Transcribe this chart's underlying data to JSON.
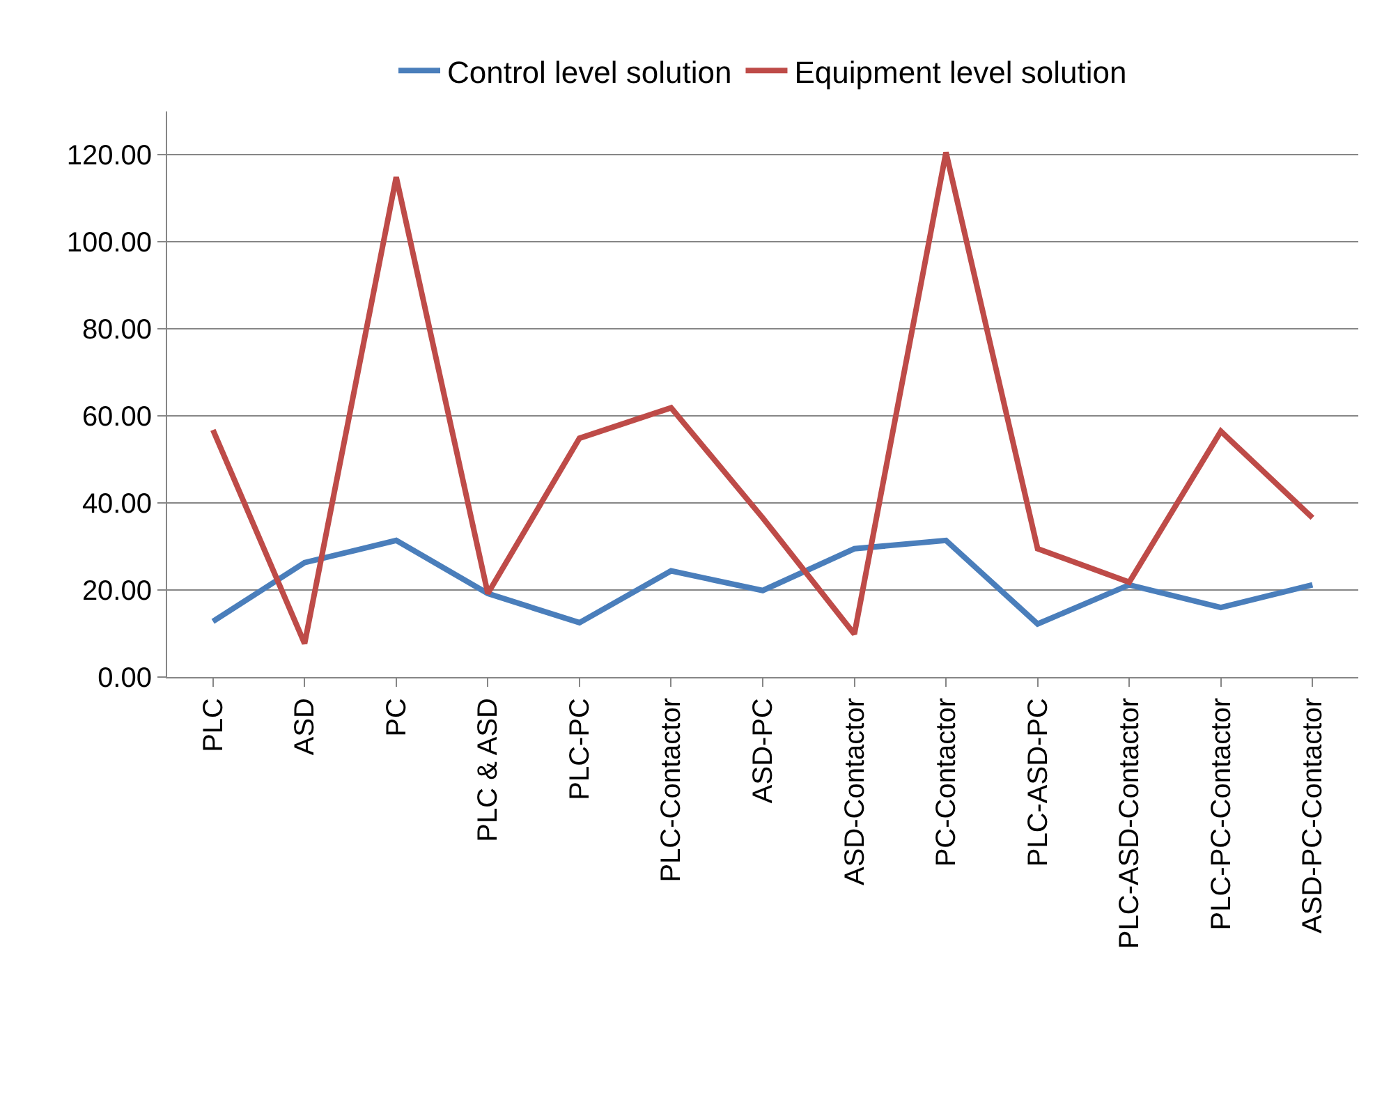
{
  "chart_data": {
    "type": "line",
    "categories": [
      "PLC",
      "ASD",
      "PC",
      "PLC & ASD",
      "PLC-PC",
      "PLC-Contactor",
      "ASD-PC",
      "ASD-Contactor",
      "PC-Contactor",
      "PLC-ASD-PC",
      "PLC-ASD-Contactor",
      "PLC-PC-Contactor",
      "ASD-PC-Contactor"
    ],
    "series": [
      {
        "name": "Control level solution",
        "color": "#4a7ebb",
        "values": [
          12.8,
          26.3,
          31.4,
          19.2,
          12.5,
          24.4,
          19.9,
          29.5,
          31.4,
          12.2,
          21.2,
          16.0,
          21.2
        ]
      },
      {
        "name": "Equipment level solution",
        "color": "#be4b48",
        "values": [
          56.8,
          7.7,
          114.9,
          19.2,
          54.9,
          61.9,
          36.6,
          9.9,
          120.6,
          29.5,
          21.8,
          56.5,
          36.6
        ]
      }
    ],
    "ylim": [
      0,
      130
    ],
    "yticks": [
      {
        "value": 0,
        "label": "0.00"
      },
      {
        "value": 20,
        "label": "20.00"
      },
      {
        "value": 40,
        "label": "40.00"
      },
      {
        "value": 60,
        "label": "60.00"
      },
      {
        "value": 80,
        "label": "80.00"
      },
      {
        "value": 100,
        "label": "100.00"
      },
      {
        "value": 120,
        "label": "120.00"
      }
    ],
    "grid": "y",
    "legend": "top",
    "marker": "none",
    "line_style": "solid"
  }
}
